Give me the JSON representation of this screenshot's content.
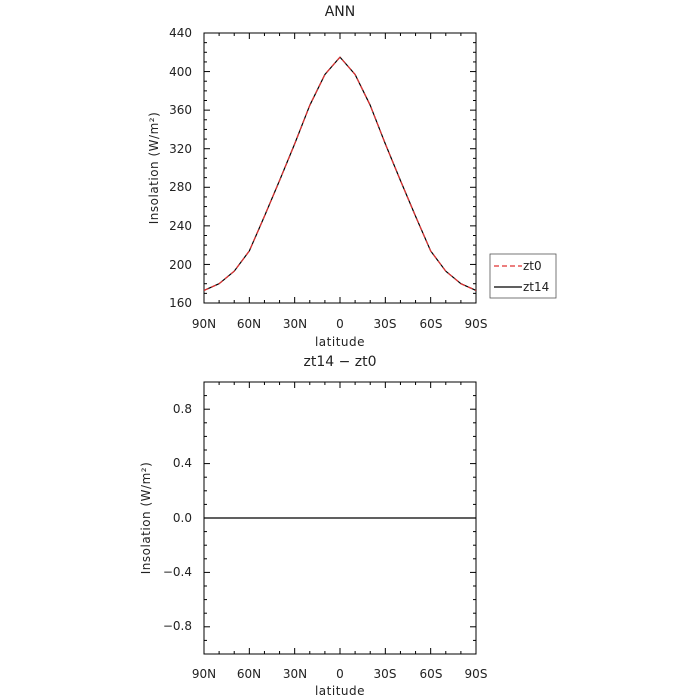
{
  "chart_data": [
    {
      "type": "line",
      "title": "ANN",
      "xlabel": "latitude",
      "ylabel": "Insolation (W/m²)",
      "xlim": [
        -90,
        90
      ],
      "ylim": [
        160,
        440
      ],
      "x_tick_labels": [
        "90N",
        "60N",
        "30N",
        "0",
        "30S",
        "60S",
        "90S"
      ],
      "y_tick_labels": [
        "160",
        "200",
        "240",
        "280",
        "320",
        "360",
        "400",
        "440"
      ],
      "legend": {
        "placement": "right"
      },
      "series": [
        {
          "name": "zt0",
          "color": "#e03030",
          "dash": "dashed",
          "x": [
            -90,
            -80,
            -70,
            -60,
            -50,
            -40,
            -30,
            -20,
            -10,
            0,
            10,
            20,
            30,
            40,
            50,
            60,
            70,
            80,
            90
          ],
          "y": [
            173,
            180,
            193,
            214,
            250,
            287,
            325,
            365,
            397,
            415,
            397,
            365,
            325,
            287,
            250,
            214,
            193,
            180,
            173
          ]
        },
        {
          "name": "zt14",
          "color": "#000000",
          "dash": "solid",
          "x": [
            -90,
            -80,
            -70,
            -60,
            -50,
            -40,
            -30,
            -20,
            -10,
            0,
            10,
            20,
            30,
            40,
            50,
            60,
            70,
            80,
            90
          ],
          "y": [
            173,
            180,
            193,
            214,
            250,
            287,
            325,
            365,
            397,
            415,
            397,
            365,
            325,
            287,
            250,
            214,
            193,
            180,
            173
          ]
        }
      ]
    },
    {
      "type": "line",
      "title": "zt14 − zt0",
      "xlabel": "latitude",
      "ylabel": "Insolation (W/m²)",
      "xlim": [
        -90,
        90
      ],
      "ylim": [
        -1,
        1
      ],
      "x_tick_labels": [
        "90N",
        "60N",
        "30N",
        "0",
        "30S",
        "60S",
        "90S"
      ],
      "y_tick_labels": [
        "−0.8",
        "−0.4",
        "0.0",
        "0.4",
        "0.8"
      ],
      "series": [
        {
          "color": "#000000",
          "dash": "solid",
          "x": [
            -90,
            -45,
            0,
            45,
            90
          ],
          "y": [
            0,
            0,
            0,
            0,
            0
          ]
        }
      ]
    }
  ]
}
